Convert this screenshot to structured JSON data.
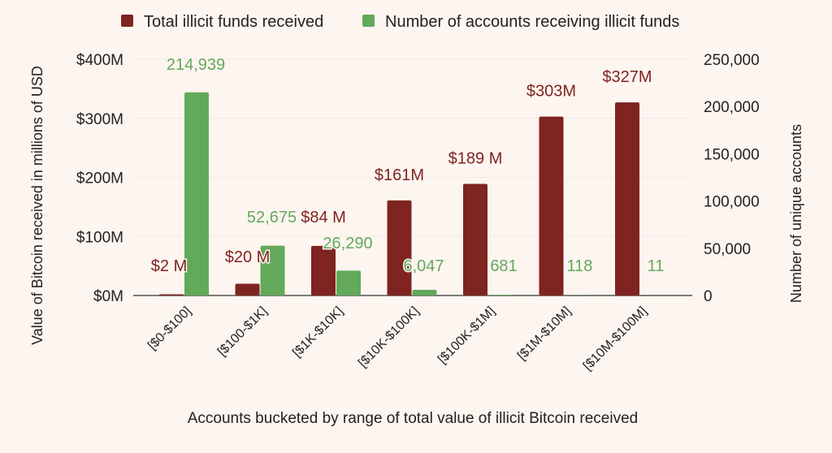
{
  "chart_data": {
    "type": "bar",
    "title": "",
    "categories": [
      "[$0-$100]",
      "[$100-$1K]",
      "[$1K-$10K]",
      "[$10K-$100K]",
      "[$100K-$1M]",
      "[$1M-$10M]",
      "[$10M-$100M]"
    ],
    "series": [
      {
        "name": "Total illicit funds received",
        "axis": "left",
        "color": "#7f2420",
        "values": [
          2,
          20,
          84,
          161,
          189,
          303,
          327
        ],
        "labels": [
          "$2 M",
          "$20 M",
          "$84 M",
          "$161M",
          "$189 M",
          "$303M",
          "$327M"
        ]
      },
      {
        "name": "Number of accounts receiving illicit funds",
        "axis": "right",
        "color": "#63a95a",
        "values": [
          214939,
          52675,
          26290,
          6047,
          681,
          118,
          11
        ],
        "labels": [
          "214,939",
          "52,675",
          "26,290",
          "6,047",
          "681",
          "118",
          "11"
        ]
      }
    ],
    "xlabel": "Accounts bucketed by range of total value of illicit Bitcoin received",
    "ylabel": "Value of Bitcoin received in millions of USD",
    "y2label": "Number of unique accounts",
    "ylim": [
      0,
      400
    ],
    "y2lim": [
      0,
      250000
    ],
    "yticks": [
      "$0M",
      "$100M",
      "$200M",
      "$300M",
      "$400M"
    ],
    "y2ticks": [
      "0",
      "50,000",
      "100,000",
      "150,000",
      "200,000",
      "250,000"
    ],
    "legend": "top",
    "grid": true
  }
}
